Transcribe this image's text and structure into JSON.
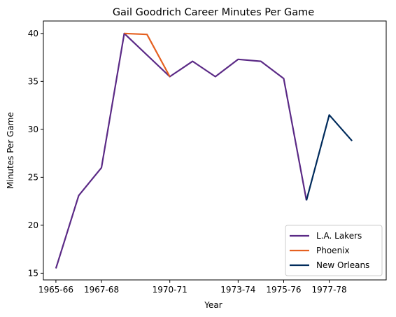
{
  "chart_data": {
    "type": "line",
    "title": "Gail Goodrich Career Minutes Per Game",
    "xlabel": "Year",
    "ylabel": "Minutes Per Game",
    "x_tick_labels": [
      "1965-66",
      "1967-68",
      "1970-71",
      "1973-74",
      "1975-76",
      "1977-78"
    ],
    "y_ticks": [
      15,
      20,
      25,
      30,
      35,
      40
    ],
    "ylim": [
      14.3,
      41.3
    ],
    "grid": false,
    "legend_position": "bottom-right",
    "series": [
      {
        "name": "L.A. Lakers",
        "color": "#5b2a86",
        "points": [
          {
            "x": "1965-66",
            "y": 15.5
          },
          {
            "x": "1966-67",
            "y": 23.1
          },
          {
            "x": "1967-68",
            "y": 26.0
          },
          {
            "x": "1968-69",
            "y": 40.0
          },
          {
            "x": "1968-69",
            "y": 40.0
          },
          {
            "x": "1970-71",
            "y": 35.5
          },
          {
            "x": "1971-72",
            "y": 37.1
          },
          {
            "x": "1972-73",
            "y": 35.5
          },
          {
            "x": "1973-74",
            "y": 37.3
          },
          {
            "x": "1974-75",
            "y": 37.1
          },
          {
            "x": "1975-76",
            "y": 35.3
          },
          {
            "x": "1976-77",
            "y": 22.6
          }
        ]
      },
      {
        "name": "Phoenix",
        "color": "#e56020",
        "points": [
          {
            "x": "1968-69",
            "y": 40.0
          },
          {
            "x": "1969-70",
            "y": 39.9
          },
          {
            "x": "1970-71",
            "y": 35.5
          }
        ]
      },
      {
        "name": "New Orleans",
        "color": "#002b5c",
        "points": [
          {
            "x": "1976-77",
            "y": 22.6
          },
          {
            "x": "1977-78",
            "y": 31.5
          },
          {
            "x": "1978-79",
            "y": 28.8
          }
        ]
      }
    ]
  }
}
